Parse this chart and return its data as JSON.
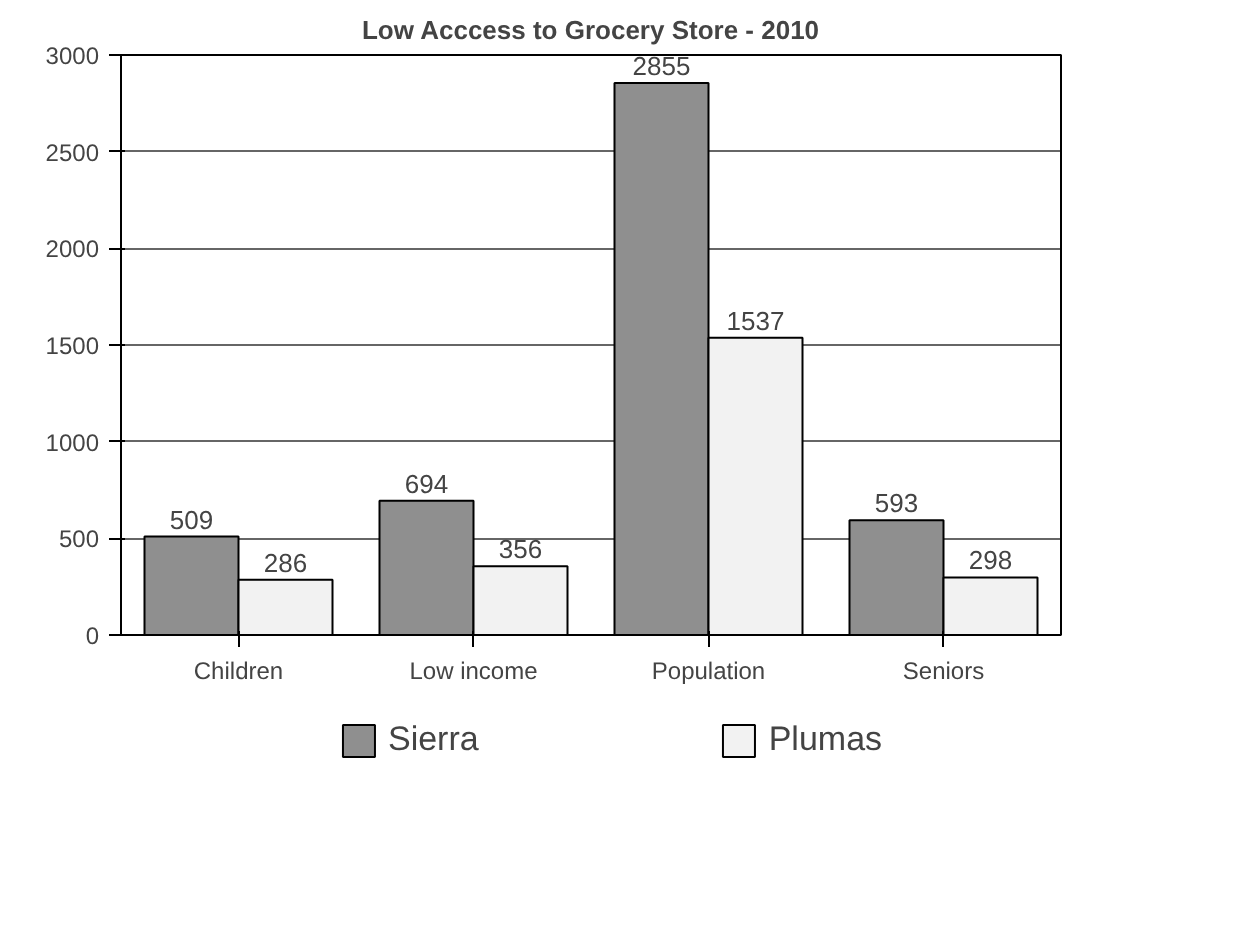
{
  "chart_data": {
    "type": "bar",
    "title": "Low Acccess to Grocery Store - 2010",
    "categories": [
      "Children",
      "Low income",
      "Population",
      "Seniors"
    ],
    "series": [
      {
        "name": "Sierra",
        "color": "#8f8f8f",
        "values": [
          509,
          694,
          2855,
          593
        ]
      },
      {
        "name": "Plumas",
        "color": "#f2f2f2",
        "values": [
          286,
          356,
          1537,
          298
        ]
      }
    ],
    "ylim": [
      0,
      3000
    ],
    "yticks": [
      0,
      500,
      1000,
      1500,
      2000,
      2500,
      3000
    ],
    "grid": "y",
    "legend": "bottom",
    "data_labels": true
  }
}
